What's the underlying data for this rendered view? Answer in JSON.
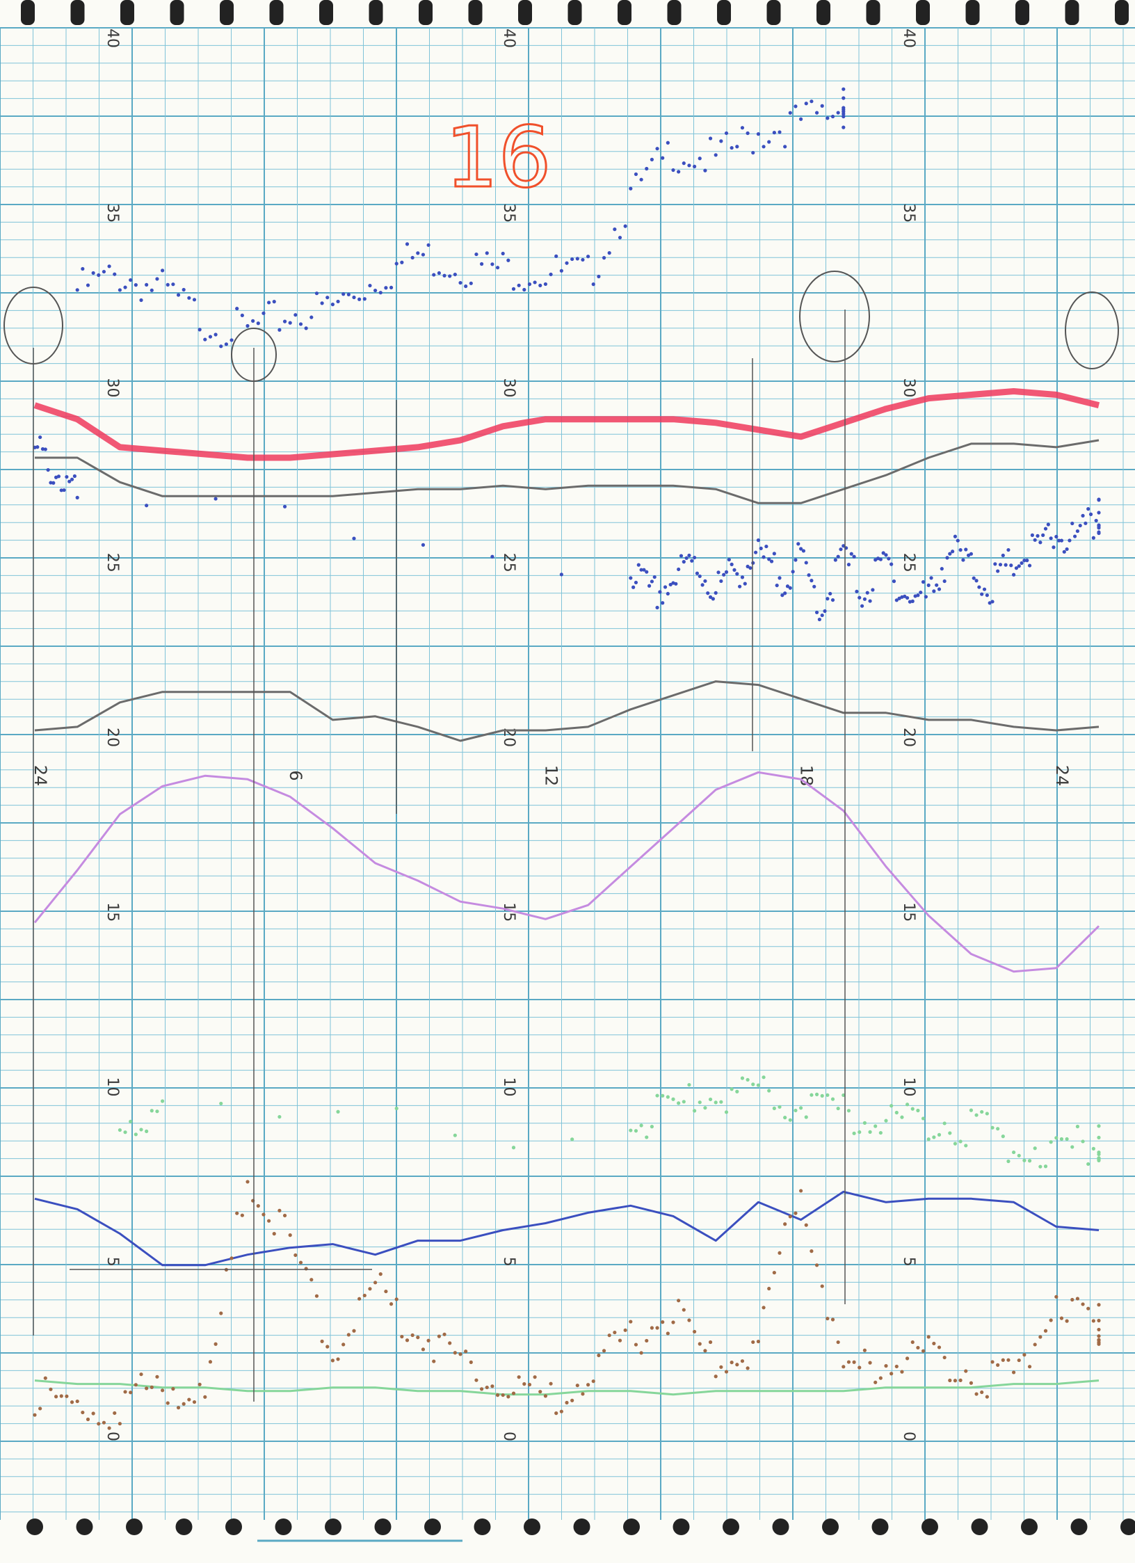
{
  "page_number": "16",
  "colors": {
    "grid": "#7fc3d8",
    "grid_major": "#5aa9c4",
    "paper": "#fbfbf6",
    "blue": "#3b4fbf",
    "red": "#ef3a5d",
    "gray": "#6b6b6b",
    "violet": "#c58be0",
    "green": "#86d69a",
    "brown": "#a06a46",
    "pencil": "#555555",
    "binding": "#222222"
  },
  "chart_data": {
    "type": "line",
    "title": "",
    "xlabel": "",
    "ylabel": "",
    "ylim": [
      0,
      40
    ],
    "xlim": [
      0,
      25
    ],
    "grid": true,
    "x_ticks": [
      {
        "x": 0,
        "label": "24"
      },
      {
        "x": 6,
        "label": "6"
      },
      {
        "x": 12,
        "label": "12"
      },
      {
        "x": 18,
        "label": "18"
      },
      {
        "x": 24,
        "label": "24"
      }
    ],
    "y_tick_values": [
      0,
      5,
      10,
      15,
      20,
      25,
      30,
      35,
      40
    ],
    "y_tick_labels": [
      "0",
      "5",
      "10",
      "15",
      "20",
      "25",
      "30",
      "35",
      "40"
    ],
    "series": [
      {
        "color_key": "blue",
        "style": "dots",
        "x": [
          1,
          2,
          3,
          4,
          5,
          6,
          7,
          8,
          9,
          10,
          11,
          12,
          13,
          14,
          15,
          16,
          17,
          18,
          19
        ],
        "y": [
          32.8,
          33.2,
          32.8,
          31.9,
          31.6,
          32.1,
          32.3,
          33.1,
          33.8,
          33.5,
          33.4,
          33.3,
          33.2,
          35.4,
          36.8,
          36.5,
          37.3,
          37.6,
          38.0
        ]
      },
      {
        "color_key": "red",
        "style": "band",
        "x": [
          0,
          1,
          2,
          3,
          4,
          5,
          6,
          7,
          8,
          9,
          10,
          11,
          12,
          13,
          14,
          15,
          16,
          17,
          18,
          19,
          20,
          21,
          22,
          23,
          24,
          25
        ],
        "y": [
          29.5,
          29.1,
          28.3,
          28.2,
          28.1,
          28.0,
          28.0,
          28.1,
          28.2,
          28.3,
          28.5,
          28.9,
          29.1,
          29.1,
          29.1,
          29.1,
          29.0,
          28.8,
          28.6,
          29.0,
          29.4,
          29.7,
          29.8,
          29.9,
          29.8,
          29.5
        ]
      },
      {
        "color_key": "gray",
        "x": [
          0,
          1,
          2,
          3,
          4,
          5,
          6,
          7,
          8,
          9,
          10,
          11,
          12,
          13,
          14,
          15,
          16,
          17,
          18,
          19,
          20,
          21,
          22,
          23,
          24,
          25
        ],
        "y": [
          28.0,
          28.0,
          27.3,
          26.9,
          26.9,
          26.9,
          26.9,
          26.9,
          27.0,
          27.1,
          27.1,
          27.2,
          27.1,
          27.2,
          27.2,
          27.2,
          27.1,
          26.7,
          26.7,
          27.1,
          27.5,
          28.0,
          28.4,
          28.4,
          28.3,
          28.5
        ]
      },
      {
        "color_key": "blue",
        "style": "dots",
        "x": [
          0,
          0.5,
          1,
          14,
          14.5,
          15,
          15.5,
          16,
          16.5,
          17,
          17.5,
          18,
          18.5,
          19,
          19.5,
          20,
          20.5,
          21,
          21.5,
          22,
          22.5,
          23,
          23.5,
          24,
          24.5,
          25
        ],
        "y": [
          28.2,
          27.6,
          26.8,
          24.8,
          24.0,
          24.5,
          25.0,
          24.2,
          24.8,
          25.1,
          24.6,
          25.0,
          23.7,
          25.2,
          24.1,
          25.0,
          24.0,
          24.0,
          25.4,
          24.8,
          24.3,
          25.0,
          25.3,
          25.8,
          25.6,
          26.3
        ]
      },
      {
        "color_key": "gray",
        "x": [
          0,
          1,
          2,
          3,
          4,
          5,
          6,
          7,
          8,
          9,
          10,
          11,
          12,
          13,
          14,
          15,
          16,
          17,
          18,
          19,
          20,
          21,
          22,
          23,
          24,
          25
        ],
        "y": [
          20.2,
          20.3,
          21.0,
          21.3,
          21.3,
          21.3,
          21.3,
          20.5,
          20.6,
          20.3,
          19.9,
          20.2,
          20.2,
          20.3,
          20.8,
          21.2,
          21.6,
          21.5,
          21.1,
          20.7,
          20.7,
          20.5,
          20.5,
          20.3,
          20.2,
          20.3
        ]
      },
      {
        "color_key": "violet",
        "x": [
          0,
          1,
          2,
          3,
          4,
          5,
          6,
          7,
          8,
          9,
          10,
          11,
          12,
          13,
          14,
          15,
          16,
          17,
          18,
          19,
          20,
          21,
          22,
          23,
          24,
          25
        ],
        "y": [
          14.7,
          16.2,
          17.8,
          18.6,
          18.9,
          18.8,
          18.3,
          17.4,
          16.4,
          15.9,
          15.3,
          15.1,
          14.8,
          15.2,
          16.3,
          17.4,
          18.5,
          19.0,
          18.8,
          17.9,
          16.3,
          14.9,
          13.8,
          13.3,
          13.4,
          14.6
        ]
      },
      {
        "color_key": "blue",
        "x": [
          0,
          1,
          2,
          3,
          4,
          5,
          6,
          7,
          8,
          9,
          10,
          11,
          12,
          13,
          14,
          15,
          16,
          17,
          18,
          19,
          20,
          21,
          22,
          23,
          24,
          25
        ],
        "y": [
          6.8,
          6.5,
          5.8,
          4.9,
          4.9,
          5.2,
          5.4,
          5.5,
          5.2,
          5.6,
          5.6,
          5.9,
          6.1,
          6.4,
          6.6,
          6.3,
          5.6,
          6.7,
          6.2,
          7.0,
          6.7,
          6.8,
          6.8,
          6.7,
          6.0,
          5.9
        ]
      },
      {
        "color_key": "green",
        "x": [
          0,
          1,
          2,
          3,
          4,
          5,
          6,
          7,
          8,
          9,
          10,
          11,
          12,
          13,
          14,
          15,
          16,
          17,
          18,
          19,
          20,
          21,
          22,
          23,
          24,
          25
        ],
        "y": [
          1.6,
          1.5,
          1.5,
          1.4,
          1.4,
          1.3,
          1.3,
          1.4,
          1.4,
          1.3,
          1.3,
          1.2,
          1.2,
          1.3,
          1.3,
          1.2,
          1.3,
          1.3,
          1.3,
          1.3,
          1.4,
          1.4,
          1.4,
          1.5,
          1.5,
          1.6
        ]
      },
      {
        "color_key": "brown",
        "style": "dots",
        "x": [
          0,
          1,
          2,
          3,
          4,
          5,
          6,
          7,
          8,
          9,
          10,
          11,
          12,
          13,
          14,
          15,
          16,
          17,
          18,
          19,
          20,
          21,
          22,
          23,
          24,
          25
        ],
        "y": [
          1.2,
          0.7,
          0.8,
          1.6,
          1.0,
          7.5,
          5.5,
          2.5,
          4.2,
          3.0,
          2.2,
          1.6,
          1.0,
          1.8,
          2.8,
          3.5,
          2.0,
          2.6,
          7.2,
          1.6,
          2.2,
          2.4,
          1.8,
          1.6,
          4.0,
          3.2
        ]
      },
      {
        "color_key": "green",
        "style": "dots",
        "x": [
          2,
          3,
          14,
          15,
          16,
          17,
          18,
          19,
          20,
          21,
          22,
          23,
          24,
          25
        ],
        "y": [
          9.2,
          9.0,
          8.8,
          9.4,
          9.8,
          9.7,
          9.5,
          9.2,
          9.1,
          9.0,
          8.9,
          8.3,
          8.2,
          8.4
        ]
      }
    ]
  }
}
